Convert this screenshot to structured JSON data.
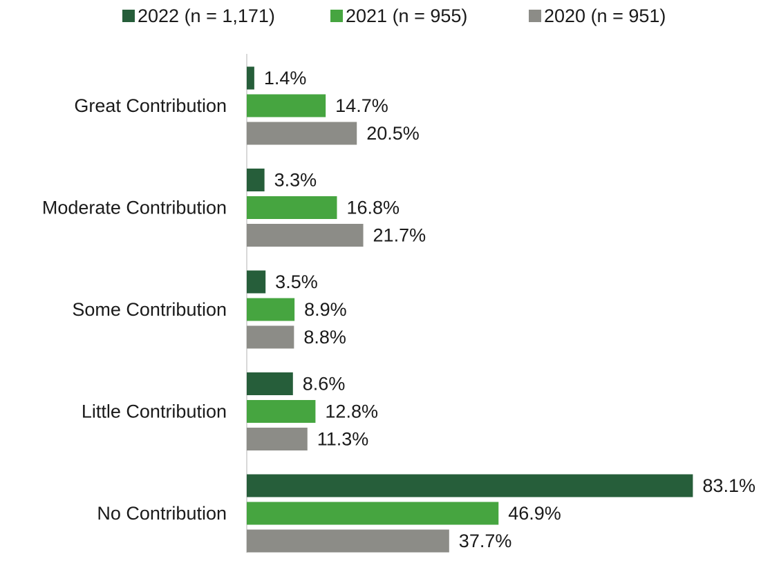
{
  "chart_data": {
    "type": "hbar",
    "categories": [
      "Great Contribution",
      "Moderate Contribution",
      "Some Contribution",
      "Little Contribution",
      "No Contribution"
    ],
    "series": [
      {
        "name": "2022 (n = 1,171)",
        "color": "#265e3a",
        "values": [
          1.4,
          3.3,
          3.5,
          8.6,
          83.1
        ],
        "value_labels": [
          "1.4%",
          "3.3%",
          "3.5%",
          "8.6%",
          "83.1%"
        ]
      },
      {
        "name": "2021 (n = 955)",
        "color": "#46a540",
        "values": [
          14.7,
          16.8,
          8.9,
          12.8,
          46.9
        ],
        "value_labels": [
          "14.7%",
          "16.8%",
          "8.9%",
          "12.8%",
          "46.9%"
        ]
      },
      {
        "name": "2020 (n = 951)",
        "color": "#8c8c87",
        "values": [
          20.5,
          21.7,
          8.8,
          11.3,
          37.7
        ],
        "value_labels": [
          "20.5%",
          "21.7%",
          "8.8%",
          "11.3%",
          "37.7%"
        ]
      }
    ],
    "xlim": [
      0,
      90
    ],
    "legend": "top"
  }
}
